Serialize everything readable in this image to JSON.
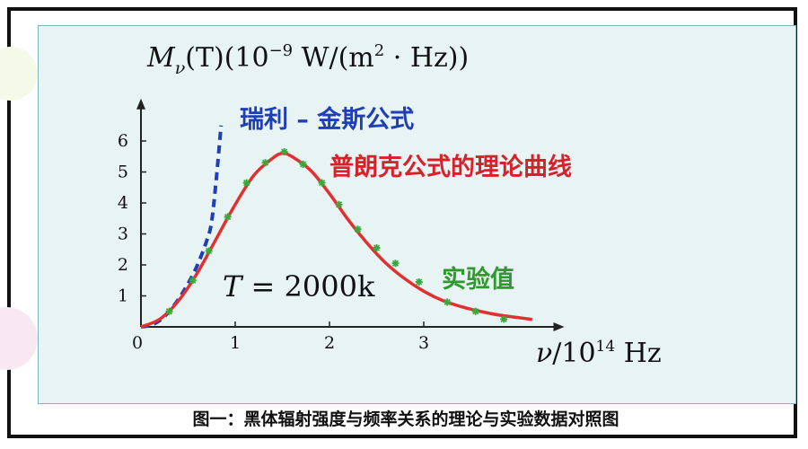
{
  "caption": "图一：黑体辐射强度与频率关系的理论与实验数据对照图",
  "chart_data": {
    "type": "line",
    "y_axis_label": {
      "symbol": "M",
      "subscript": "ν",
      "rest": "(T)(10",
      "exp1": "−9",
      "mid": " W/(m",
      "exp2": "2",
      "end": " · Hz))"
    },
    "x_axis_label": {
      "symbol": "ν",
      "rest": "/10",
      "exp": "14",
      "end": " Hz"
    },
    "x_ticks": [
      "0",
      "1",
      "2",
      "3"
    ],
    "y_ticks": [
      "1",
      "2",
      "3",
      "4",
      "5",
      "6"
    ],
    "xlim": [
      0,
      4.3
    ],
    "ylim": [
      0,
      6.5
    ],
    "condition_label": {
      "symbol": "T",
      "rest": " = 2000k"
    },
    "colors": {
      "rayleigh": "#1f3fb5",
      "planck": "#e03030",
      "experiment": "#3aa83a",
      "labels_red": "#d8202a",
      "labels_blue": "#1f3fb5",
      "labels_green": "#2e9a2e"
    },
    "series": [
      {
        "name": "瑞利 – 金斯公式",
        "style": "dashed",
        "x": [
          0,
          0.1,
          0.2,
          0.3,
          0.4,
          0.5,
          0.6,
          0.7,
          0.75,
          0.8,
          0.85
        ],
        "y": [
          0,
          0.05,
          0.21,
          0.5,
          0.9,
          1.4,
          2.0,
          2.8,
          3.4,
          4.8,
          6.5
        ]
      },
      {
        "name": "普朗克公式的理论曲线",
        "style": "solid",
        "x": [
          0,
          0.2,
          0.4,
          0.6,
          0.8,
          1.0,
          1.2,
          1.4,
          1.5,
          1.6,
          1.8,
          2.0,
          2.2,
          2.4,
          2.6,
          2.8,
          3.0,
          3.2,
          3.4,
          3.6,
          3.8,
          4.0,
          4.15
        ],
        "y": [
          0,
          0.25,
          0.85,
          1.75,
          2.85,
          3.95,
          4.9,
          5.45,
          5.6,
          5.5,
          5.05,
          4.3,
          3.45,
          2.7,
          2.05,
          1.55,
          1.15,
          0.85,
          0.65,
          0.5,
          0.38,
          0.3,
          0.24
        ]
      },
      {
        "name": "实验值",
        "style": "markers",
        "x": [
          0.3,
          0.55,
          0.72,
          0.92,
          1.12,
          1.32,
          1.52,
          1.72,
          1.92,
          2.1,
          2.3,
          2.5,
          2.7,
          2.95,
          3.25,
          3.55,
          3.85
        ],
        "y": [
          0.5,
          1.5,
          2.45,
          3.55,
          4.65,
          5.3,
          5.65,
          5.25,
          4.65,
          3.95,
          3.15,
          2.55,
          2.05,
          1.45,
          0.8,
          0.5,
          0.25
        ]
      }
    ]
  }
}
